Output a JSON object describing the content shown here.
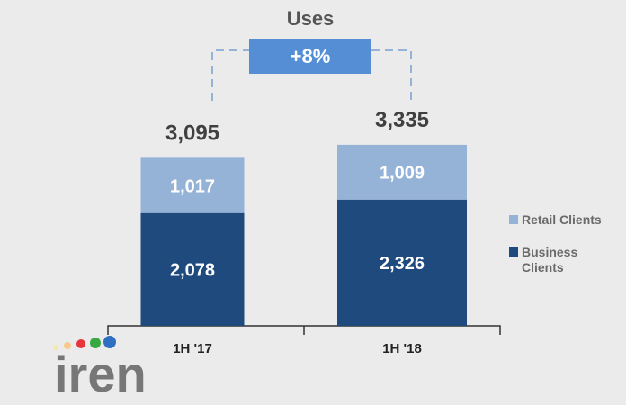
{
  "chart_data": {
    "type": "stacked_bar",
    "title": "Uses",
    "annotation": "+8%",
    "logo": "iren",
    "categories": [
      "1H '17",
      "1H '18"
    ],
    "series": [
      {
        "name": "Business Clients",
        "color": "#1f4a7e",
        "values": [
          2078,
          2326
        ],
        "value_labels": [
          "2,078",
          "2,326"
        ]
      },
      {
        "name": "Retail Clients",
        "color": "#95b3d7",
        "values": [
          1017,
          1009
        ],
        "value_labels": [
          "1,017",
          "1,009"
        ]
      }
    ],
    "totals": [
      3095,
      3335
    ],
    "total_labels": [
      "3,095",
      "3,335"
    ]
  }
}
